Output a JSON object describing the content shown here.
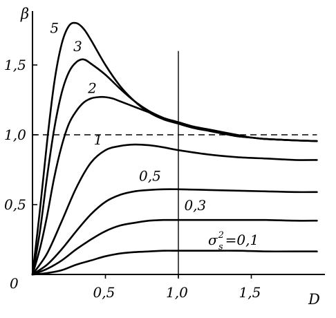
{
  "chart_data": {
    "type": "line",
    "xlabel": "D",
    "ylabel": "β",
    "origin_label": "0",
    "xlim": [
      0,
      1.95
    ],
    "ylim": [
      0,
      1.85
    ],
    "x_ticks": [
      {
        "value": 0.5,
        "label": "0,5"
      },
      {
        "value": 1.0,
        "label": "1,0"
      },
      {
        "value": 1.5,
        "label": "1,5"
      }
    ],
    "y_ticks": [
      {
        "value": 0.5,
        "label": "0,5"
      },
      {
        "value": 1.0,
        "label": "1,0"
      },
      {
        "value": 1.5,
        "label": "1,5"
      }
    ],
    "reference_line": {
      "y": 1.0,
      "style": "dashed"
    },
    "vertical_line": {
      "x": 1.0
    },
    "legend_text": {
      "main": "σ",
      "sup": "2",
      "sub": "s",
      "rest": "=0,1"
    },
    "grid": false,
    "series": [
      {
        "name": "5",
        "x": [
          0,
          0.05,
          0.1,
          0.15,
          0.2,
          0.25,
          0.3,
          0.35,
          0.4,
          0.5,
          0.6,
          0.7,
          0.8,
          0.9,
          1.0,
          1.1,
          1.2,
          1.3,
          1.4,
          1.5,
          1.6,
          1.7,
          1.8,
          1.95
        ],
        "y": [
          0,
          0.45,
          0.95,
          1.38,
          1.65,
          1.78,
          1.8,
          1.76,
          1.68,
          1.5,
          1.35,
          1.24,
          1.16,
          1.11,
          1.08,
          1.05,
          1.03,
          1.01,
          0.99,
          0.98,
          0.97,
          0.965,
          0.96,
          0.955
        ]
      },
      {
        "name": "3",
        "x": [
          0,
          0.05,
          0.1,
          0.15,
          0.2,
          0.25,
          0.3,
          0.35,
          0.4,
          0.5,
          0.6,
          0.7,
          0.8,
          0.9,
          1.0,
          1.1,
          1.2,
          1.3,
          1.4,
          1.5,
          1.6,
          1.7,
          1.8,
          1.95
        ],
        "y": [
          0,
          0.3,
          0.7,
          1.05,
          1.3,
          1.45,
          1.52,
          1.54,
          1.51,
          1.43,
          1.33,
          1.24,
          1.17,
          1.12,
          1.08,
          1.05,
          1.03,
          1.01,
          0.99,
          0.98,
          0.97,
          0.965,
          0.96,
          0.955
        ]
      },
      {
        "name": "2",
        "x": [
          0,
          0.05,
          0.1,
          0.15,
          0.2,
          0.25,
          0.3,
          0.35,
          0.4,
          0.45,
          0.5,
          0.55,
          0.6,
          0.7,
          0.8,
          0.9,
          1.0,
          1.1,
          1.2,
          1.3,
          1.4,
          1.5,
          1.6,
          1.7,
          1.8,
          1.95
        ],
        "y": [
          0,
          0.18,
          0.42,
          0.7,
          0.92,
          1.08,
          1.17,
          1.23,
          1.26,
          1.27,
          1.27,
          1.26,
          1.24,
          1.2,
          1.16,
          1.12,
          1.09,
          1.06,
          1.04,
          1.02,
          1.0,
          0.98,
          0.97,
          0.965,
          0.96,
          0.955
        ]
      },
      {
        "name": "1",
        "x": [
          0,
          0.1,
          0.2,
          0.3,
          0.4,
          0.5,
          0.6,
          0.7,
          0.8,
          0.9,
          1.0,
          1.2,
          1.4,
          1.6,
          1.8,
          1.95
        ],
        "y": [
          0,
          0.15,
          0.38,
          0.62,
          0.8,
          0.89,
          0.92,
          0.93,
          0.925,
          0.91,
          0.89,
          0.86,
          0.84,
          0.83,
          0.82,
          0.82
        ]
      },
      {
        "name": "0,5",
        "x": [
          0,
          0.1,
          0.2,
          0.3,
          0.4,
          0.5,
          0.6,
          0.7,
          0.8,
          0.9,
          1.0,
          1.2,
          1.4,
          1.6,
          1.8,
          1.95
        ],
        "y": [
          0,
          0.07,
          0.18,
          0.31,
          0.43,
          0.52,
          0.57,
          0.595,
          0.605,
          0.61,
          0.61,
          0.605,
          0.6,
          0.595,
          0.59,
          0.59
        ]
      },
      {
        "name": "0,3",
        "x": [
          0,
          0.1,
          0.2,
          0.3,
          0.4,
          0.5,
          0.6,
          0.7,
          0.8,
          0.9,
          1.0,
          1.2,
          1.4,
          1.6,
          1.8,
          1.95
        ],
        "y": [
          0,
          0.04,
          0.1,
          0.18,
          0.25,
          0.31,
          0.35,
          0.37,
          0.385,
          0.39,
          0.39,
          0.39,
          0.39,
          0.39,
          0.385,
          0.385
        ]
      },
      {
        "name": "0,1",
        "x": [
          0,
          0.1,
          0.2,
          0.3,
          0.4,
          0.5,
          0.6,
          0.7,
          0.8,
          0.9,
          1.0,
          1.2,
          1.4,
          1.6,
          1.8,
          1.95
        ],
        "y": [
          0,
          0.01,
          0.03,
          0.07,
          0.1,
          0.13,
          0.15,
          0.16,
          0.165,
          0.17,
          0.17,
          0.17,
          0.17,
          0.165,
          0.165,
          0.165
        ]
      }
    ]
  }
}
